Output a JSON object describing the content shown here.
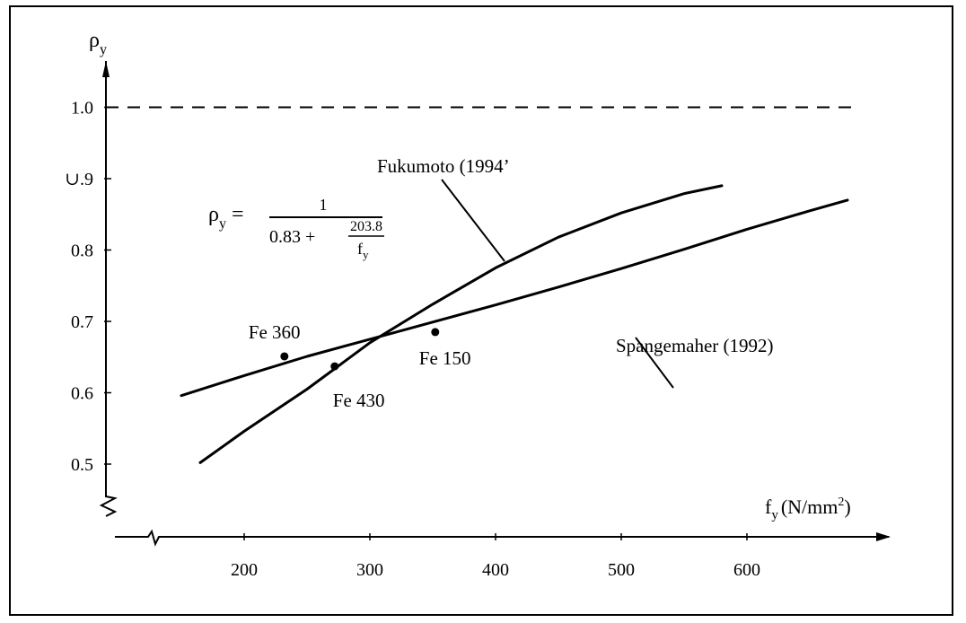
{
  "chart_data": {
    "type": "line",
    "xlabel": "f",
    "xlabel_sub": "y",
    "xlabel_unit_open": "(N/mm",
    "xlabel_unit_sup": "2",
    "xlabel_unit_close": ")",
    "ylabel": "ρ",
    "ylabel_sub": "y",
    "x_ticks": [
      200,
      300,
      400,
      500,
      600
    ],
    "y_ticks": [
      0.5,
      0.6,
      0.7,
      0.8,
      0.9,
      1.0
    ],
    "y_tick_labels": [
      "0.5",
      "0.6",
      "0.7",
      "0.8",
      "∪.9",
      "1.0"
    ],
    "xlim": [
      100,
      700
    ],
    "ylim": [
      0.45,
      1.05
    ],
    "grid": false,
    "reference_line": {
      "y": 1.0,
      "style": "dashed"
    },
    "formula": {
      "lhs": "ρ",
      "lhs_sub": "y",
      "equals": "=",
      "numerator": "1",
      "denominator_left": "0.83 +",
      "inner_numerator": "203.8",
      "inner_denominator": "f",
      "inner_denominator_sub": "y"
    },
    "series": [
      {
        "name": "Fukumoto (1994)",
        "label_text": "Fukumoto (1994ʼ",
        "x": [
          165,
          200,
          250,
          300,
          350,
          400,
          450,
          500,
          550,
          580
        ],
        "y": [
          0.502,
          0.546,
          0.605,
          0.67,
          0.724,
          0.775,
          0.818,
          0.852,
          0.879,
          0.89
        ]
      },
      {
        "name": "Spangemaher (1992)",
        "label_text": "Spangemaher (1992)",
        "x": [
          150,
          200,
          250,
          300,
          350,
          400,
          450,
          500,
          550,
          600,
          650,
          680
        ],
        "y": [
          0.596,
          0.624,
          0.651,
          0.675,
          0.699,
          0.723,
          0.748,
          0.774,
          0.801,
          0.829,
          0.855,
          0.87
        ]
      }
    ],
    "points": [
      {
        "label": "Fe 360",
        "x": 232,
        "y": 0.651
      },
      {
        "label": "Fe 430",
        "x": 272,
        "y": 0.637
      },
      {
        "label": "Fe 150",
        "x": 352,
        "y": 0.685
      }
    ]
  }
}
